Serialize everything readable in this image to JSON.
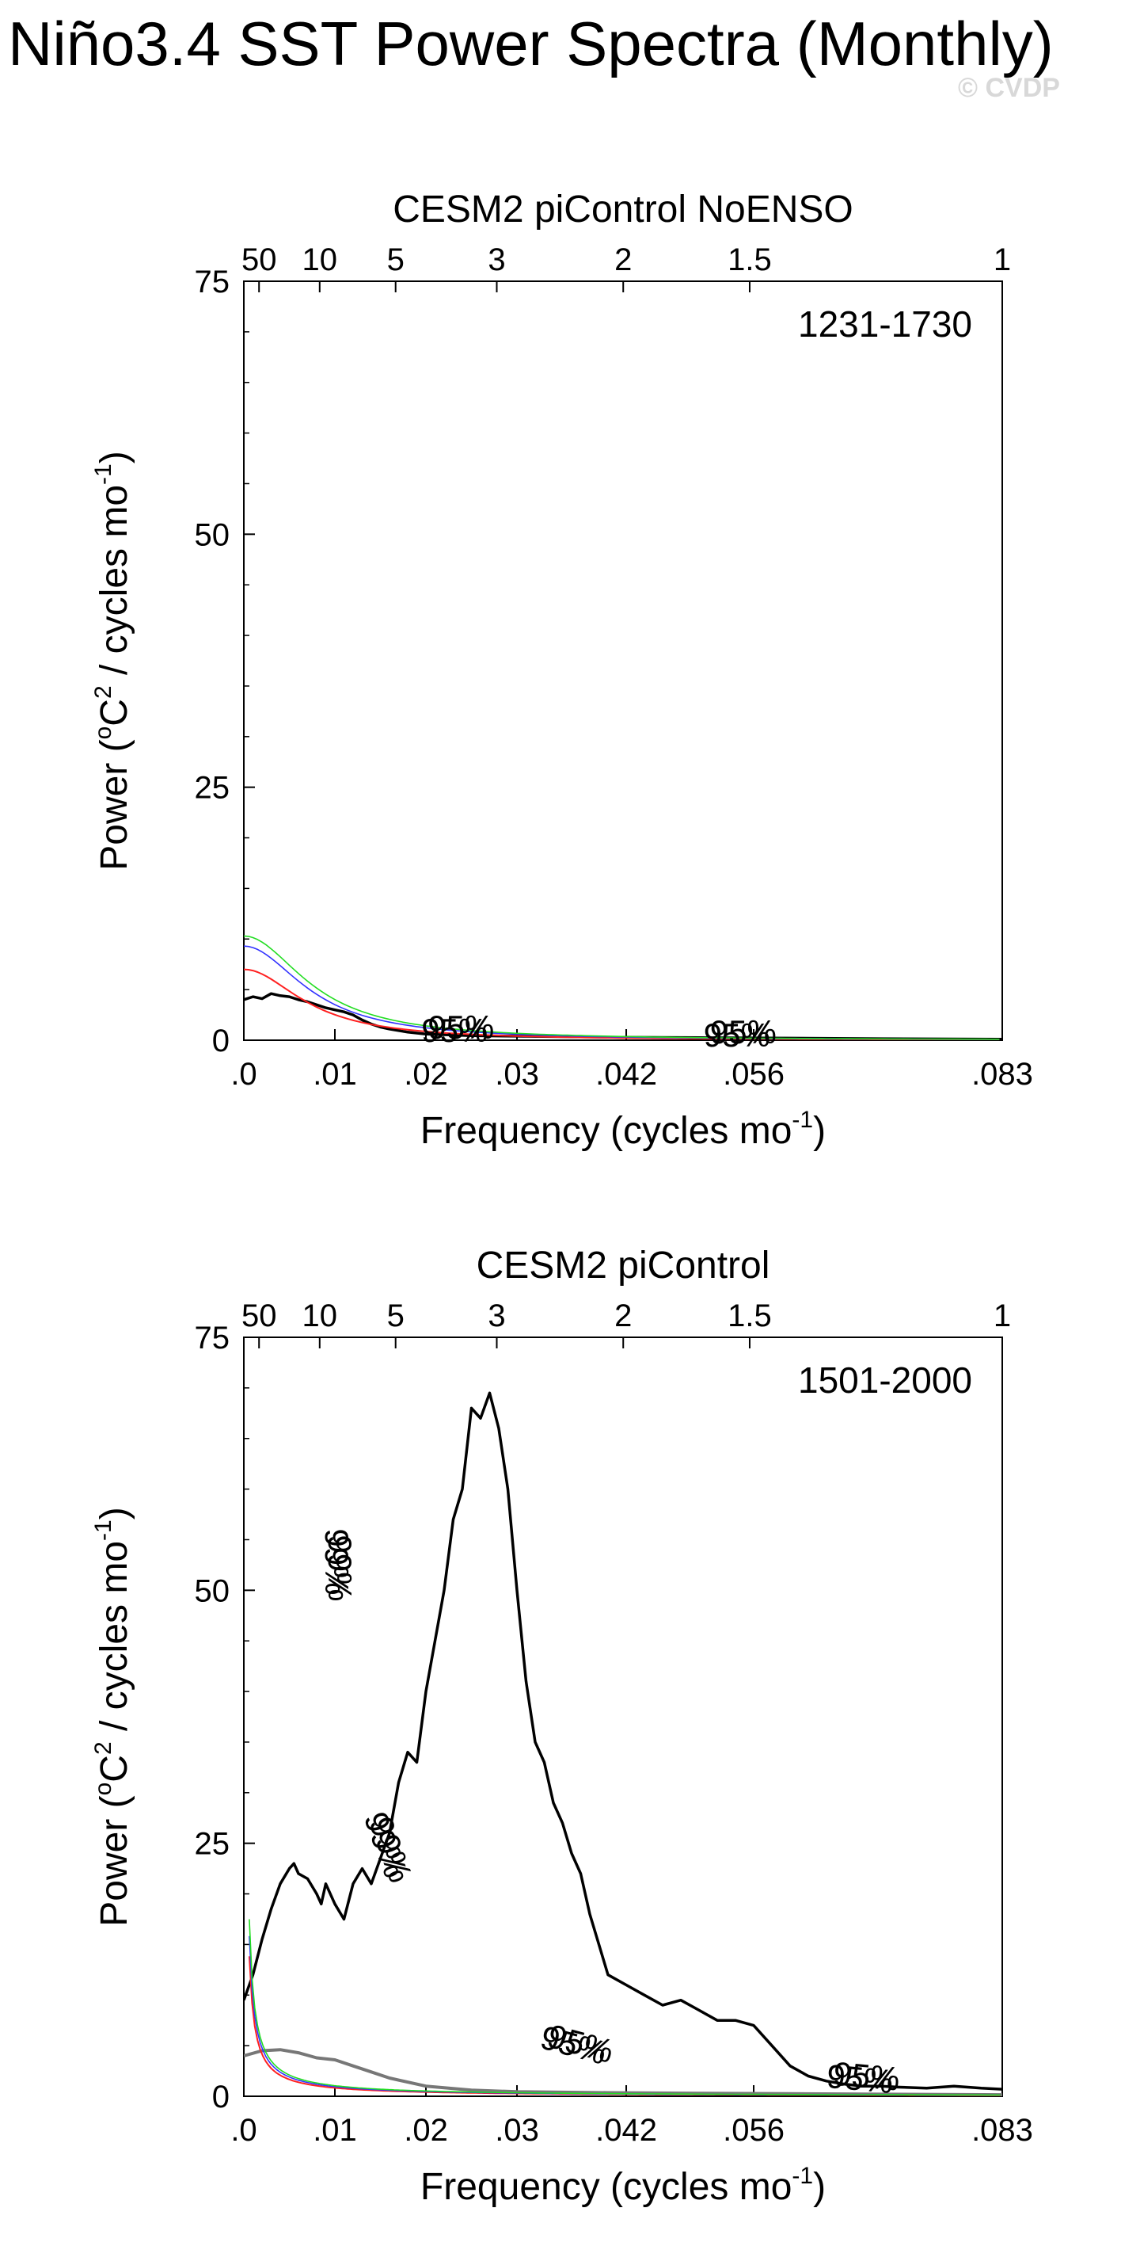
{
  "title": "Niño3.4 SST Power Spectra (Monthly)",
  "watermark": "© CVDP",
  "colors": {
    "spectrum": "#000000",
    "reference_spectrum": "#777777",
    "red_noise": "#ff2020",
    "sig95": "#3333ff",
    "sig99": "#22dd22",
    "sig_label_95": "#1a1aaa",
    "sig_label_99": "#22dd22"
  },
  "chart_data": [
    {
      "type": "line",
      "title": "CESM2 piControl NoENSO",
      "period_label": "1231-1730",
      "xlabel": "Frequency (cycles mo",
      "xlabel_sup": "-1",
      "xlabel_end": ")",
      "ylabel_pre": "Power (",
      "ylabel_sup1": "o",
      "ylabel_mid": "C",
      "ylabel_sup2": "2",
      "ylabel_post": " / cycles mo",
      "ylabel_sup3": "-1",
      "ylabel_end": ")",
      "xlim": [
        0,
        0.0833
      ],
      "ylim": [
        0,
        75
      ],
      "bottom_ticks": [
        {
          "value": 0.0,
          "label": ".0"
        },
        {
          "value": 0.01,
          "label": ".01"
        },
        {
          "value": 0.02,
          "label": ".02"
        },
        {
          "value": 0.03,
          "label": ".03"
        },
        {
          "value": 0.042,
          "label": ".042"
        },
        {
          "value": 0.056,
          "label": ".056"
        },
        {
          "value": 0.0833,
          "label": ".083"
        }
      ],
      "top_ticks": [
        {
          "value": 0.00167,
          "label": "50"
        },
        {
          "value": 0.00833,
          "label": "10"
        },
        {
          "value": 0.01667,
          "label": "5"
        },
        {
          "value": 0.02778,
          "label": "3"
        },
        {
          "value": 0.04167,
          "label": "2"
        },
        {
          "value": 0.05556,
          "label": "1.5"
        },
        {
          "value": 0.0833,
          "label": "1"
        }
      ],
      "y_ticks": [
        {
          "value": 0,
          "label": "0"
        },
        {
          "value": 25,
          "label": "25"
        },
        {
          "value": 50,
          "label": "50"
        },
        {
          "value": 75,
          "label": "75"
        }
      ],
      "series": [
        {
          "role": "spectrum",
          "x": [
            0.0,
            0.001,
            0.002,
            0.003,
            0.004,
            0.005,
            0.006,
            0.007,
            0.008,
            0.009,
            0.01,
            0.011,
            0.012,
            0.013,
            0.014,
            0.015,
            0.016,
            0.018,
            0.02,
            0.025,
            0.03,
            0.04,
            0.05,
            0.06,
            0.07,
            0.0833
          ],
          "y": [
            4.0,
            4.3,
            4.1,
            4.6,
            4.4,
            4.3,
            4.0,
            3.8,
            3.5,
            3.2,
            3.0,
            2.8,
            2.5,
            2.0,
            1.6,
            1.3,
            1.1,
            0.8,
            0.6,
            0.45,
            0.4,
            0.3,
            0.25,
            0.2,
            0.15,
            0.1
          ]
        },
        {
          "role": "red_noise",
          "x0": 0.0,
          "peak": 7.0,
          "decay": 0.0075
        },
        {
          "role": "sig95",
          "x0": 0.0,
          "peak": 9.3,
          "decay": 0.0078
        },
        {
          "role": "sig99",
          "x0": 0.0,
          "peak": 10.3,
          "decay": 0.008
        }
      ],
      "sig_labels": [
        {
          "text": "95%",
          "x": 0.0235,
          "y": 0.8
        },
        {
          "text": "95%",
          "x": 0.0545,
          "y": 0.3
        }
      ]
    },
    {
      "type": "line",
      "title": "CESM2 piControl",
      "period_label": "1501-2000",
      "xlabel": "Frequency (cycles mo",
      "xlabel_sup": "-1",
      "xlabel_end": ")",
      "ylabel_pre": "Power (",
      "ylabel_sup1": "o",
      "ylabel_mid": "C",
      "ylabel_sup2": "2",
      "ylabel_post": " / cycles mo",
      "ylabel_sup3": "-1",
      "ylabel_end": ")",
      "xlim": [
        0,
        0.0833
      ],
      "ylim": [
        0,
        75
      ],
      "bottom_ticks": [
        {
          "value": 0.0,
          "label": ".0"
        },
        {
          "value": 0.01,
          "label": ".01"
        },
        {
          "value": 0.02,
          "label": ".02"
        },
        {
          "value": 0.03,
          "label": ".03"
        },
        {
          "value": 0.042,
          "label": ".042"
        },
        {
          "value": 0.056,
          "label": ".056"
        },
        {
          "value": 0.0833,
          "label": ".083"
        }
      ],
      "top_ticks": [
        {
          "value": 0.00167,
          "label": "50"
        },
        {
          "value": 0.00833,
          "label": "10"
        },
        {
          "value": 0.01667,
          "label": "5"
        },
        {
          "value": 0.02778,
          "label": "3"
        },
        {
          "value": 0.04167,
          "label": "2"
        },
        {
          "value": 0.05556,
          "label": "1.5"
        },
        {
          "value": 0.0833,
          "label": "1"
        }
      ],
      "y_ticks": [
        {
          "value": 0,
          "label": "0"
        },
        {
          "value": 25,
          "label": "25"
        },
        {
          "value": 50,
          "label": "50"
        },
        {
          "value": 75,
          "label": "75"
        }
      ],
      "series": [
        {
          "role": "spectrum",
          "x": [
            0.0,
            0.001,
            0.002,
            0.003,
            0.004,
            0.005,
            0.0055,
            0.006,
            0.007,
            0.008,
            0.0085,
            0.009,
            0.01,
            0.011,
            0.012,
            0.013,
            0.014,
            0.015,
            0.016,
            0.017,
            0.018,
            0.019,
            0.02,
            0.021,
            0.022,
            0.023,
            0.024,
            0.025,
            0.026,
            0.027,
            0.028,
            0.029,
            0.03,
            0.031,
            0.032,
            0.033,
            0.034,
            0.035,
            0.036,
            0.037,
            0.038,
            0.039,
            0.04,
            0.042,
            0.044,
            0.046,
            0.048,
            0.05,
            0.052,
            0.054,
            0.056,
            0.058,
            0.06,
            0.062,
            0.064,
            0.066,
            0.068,
            0.07,
            0.072,
            0.075,
            0.078,
            0.081,
            0.0833
          ],
          "y": [
            9.5,
            12.0,
            15.5,
            18.5,
            21.0,
            22.5,
            23.0,
            22.0,
            21.5,
            20.0,
            19.0,
            21.0,
            19.0,
            17.5,
            21.0,
            22.5,
            21.0,
            23.5,
            26.0,
            31.0,
            34.0,
            33.0,
            40.0,
            45.0,
            50.0,
            57.0,
            60.0,
            68.0,
            67.0,
            69.5,
            66.0,
            60.0,
            50.0,
            41.0,
            35.0,
            33.0,
            29.0,
            27.0,
            24.0,
            22.0,
            18.0,
            15.0,
            12.0,
            11.0,
            10.0,
            9.0,
            9.5,
            8.5,
            7.5,
            7.5,
            7.0,
            5.0,
            3.0,
            2.0,
            1.5,
            1.2,
            1.0,
            1.0,
            0.9,
            0.8,
            1.0,
            0.8,
            0.7
          ]
        },
        {
          "role": "reference_spectrum",
          "x": [
            0.0,
            0.002,
            0.004,
            0.006,
            0.008,
            0.01,
            0.012,
            0.014,
            0.016,
            0.02,
            0.025,
            0.03,
            0.04,
            0.05,
            0.06,
            0.07,
            0.0833
          ],
          "y": [
            4.0,
            4.5,
            4.6,
            4.3,
            3.8,
            3.6,
            3.0,
            2.4,
            1.8,
            1.0,
            0.6,
            0.45,
            0.35,
            0.3,
            0.25,
            0.2,
            0.15
          ]
        },
        {
          "role": "red_noise",
          "x0": 0.0,
          "k": 0.0083
        },
        {
          "role": "sig95",
          "x0": 0.0,
          "k": 0.0095
        },
        {
          "role": "sig99",
          "x0": 0.0,
          "k": 0.0105
        }
      ],
      "sig_labels": [
        {
          "text": "99%",
          "x": 0.01,
          "y": 52.5,
          "rot": 90
        },
        {
          "text": "99%",
          "x": 0.0155,
          "y": 24.5,
          "rot": 70
        },
        {
          "text": "95%",
          "x": 0.0365,
          "y": 4.8,
          "rot": 15
        },
        {
          "text": "95%",
          "x": 0.068,
          "y": 1.5,
          "rot": 5
        }
      ]
    }
  ]
}
